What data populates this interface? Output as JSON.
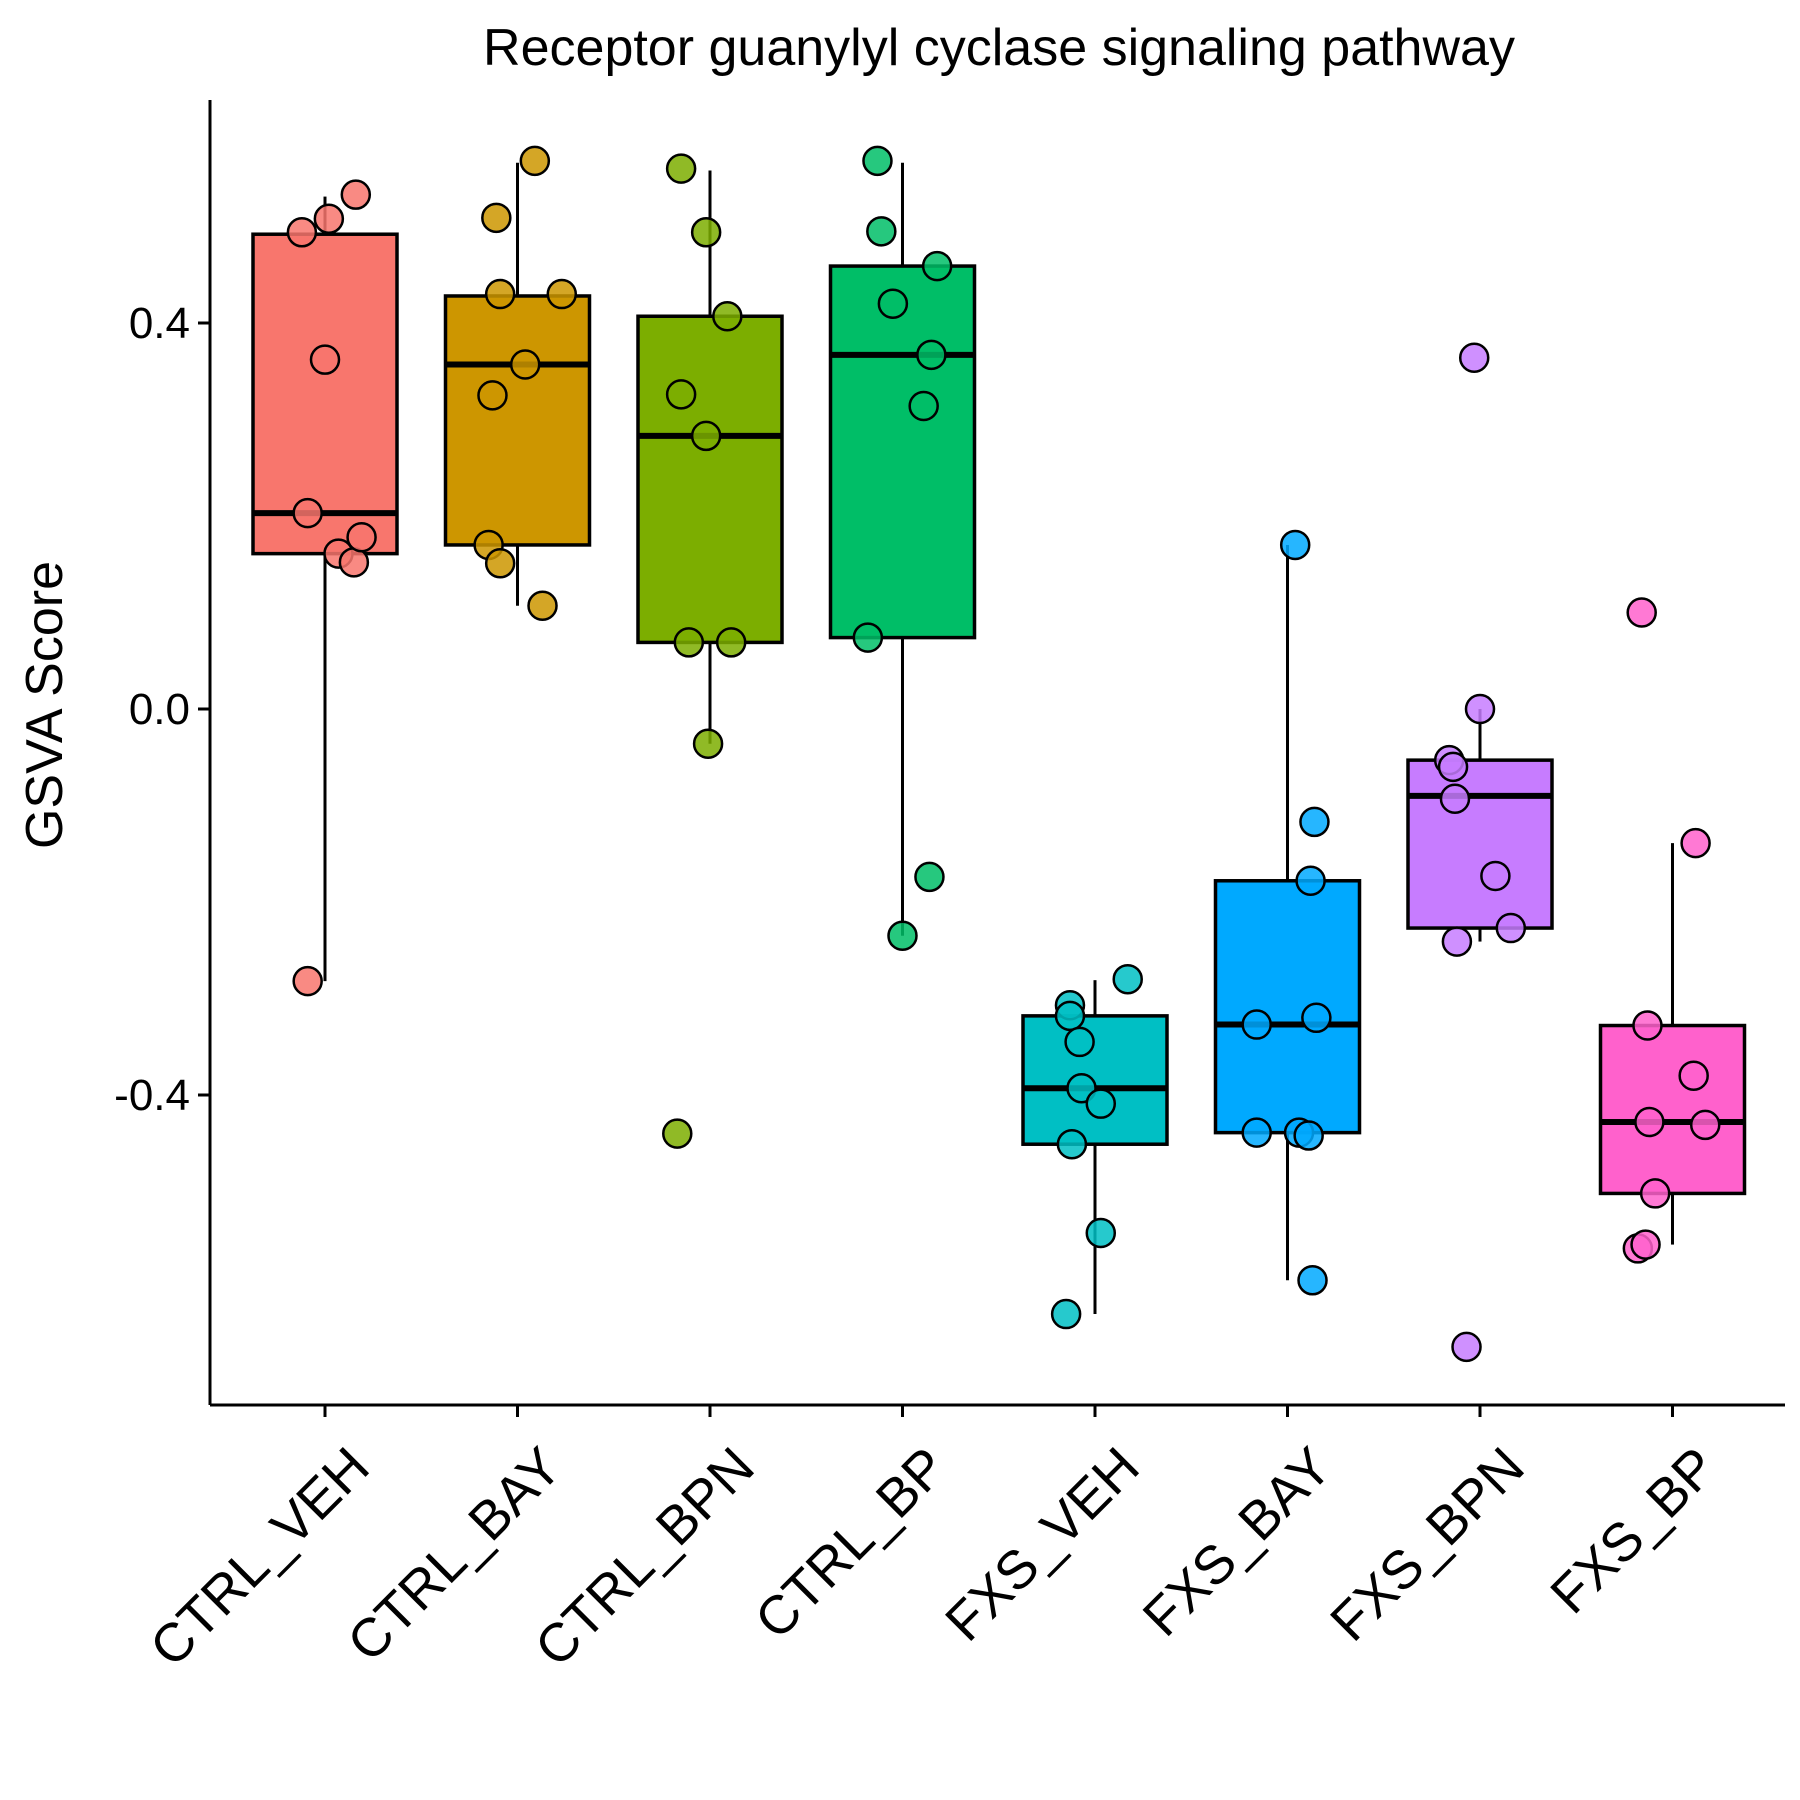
{
  "chart_data": {
    "type": "box",
    "title": "Receptor guanylyl cyclase signaling pathway",
    "xlabel": "",
    "ylabel": "GSVA Score",
    "ylim": [
      -0.72,
      0.63
    ],
    "yticks": [
      -0.4,
      0.0,
      0.4
    ],
    "ytick_labels": [
      "-0.4",
      "0.0",
      "0.4"
    ],
    "grid": false,
    "legend": "none",
    "categories": [
      "CTRL_VEH",
      "CTRL_BAY",
      "CTRL_BPN",
      "CTRL_BP",
      "FXS_VEH",
      "FXS_BAY",
      "FXS_BPN",
      "FXS_BP"
    ],
    "colors": [
      "#F8766D",
      "#CD9600",
      "#7CAE00",
      "#00BE67",
      "#00BFC4",
      "#00A9FF",
      "#C77CFF",
      "#FF61CC"
    ],
    "boxes": [
      {
        "q1": 0.161,
        "median": 0.203,
        "q3": 0.492,
        "whisker_low": -0.282,
        "whisker_high": 0.531
      },
      {
        "q1": 0.17,
        "median": 0.357,
        "q3": 0.428,
        "whisker_low": 0.107,
        "whisker_high": 0.566
      },
      {
        "q1": 0.069,
        "median": 0.283,
        "q3": 0.407,
        "whisker_low": -0.036,
        "whisker_high": 0.558
      },
      {
        "q1": 0.074,
        "median": 0.367,
        "q3": 0.459,
        "whisker_low": -0.235,
        "whisker_high": 0.566
      },
      {
        "q1": -0.451,
        "median": -0.393,
        "q3": -0.318,
        "whisker_low": -0.627,
        "whisker_high": -0.281
      },
      {
        "q1": -0.439,
        "median": -0.327,
        "q3": -0.178,
        "whisker_low": -0.592,
        "whisker_high": 0.17
      },
      {
        "q1": -0.227,
        "median": -0.09,
        "q3": -0.053,
        "whisker_low": -0.241,
        "whisker_high": 0.0
      },
      {
        "q1": -0.502,
        "median": -0.428,
        "q3": -0.328,
        "whisker_low": -0.555,
        "whisker_high": -0.139
      }
    ],
    "points": [
      [
        {
          "x": 0.38,
          "y": 0.494
        },
        {
          "x": 0.52,
          "y": 0.508
        },
        {
          "x": 0.66,
          "y": 0.533
        },
        {
          "x": 0.5,
          "y": 0.362
        },
        {
          "x": 0.41,
          "y": 0.203
        },
        {
          "x": 0.57,
          "y": 0.161
        },
        {
          "x": 0.65,
          "y": 0.152
        },
        {
          "x": 0.69,
          "y": 0.178
        },
        {
          "x": 0.41,
          "y": -0.282
        }
      ],
      [
        {
          "x": 0.39,
          "y": 0.509
        },
        {
          "x": 0.59,
          "y": 0.568
        },
        {
          "x": 0.41,
          "y": 0.43
        },
        {
          "x": 0.73,
          "y": 0.43
        },
        {
          "x": 0.54,
          "y": 0.357
        },
        {
          "x": 0.37,
          "y": 0.325
        },
        {
          "x": 0.35,
          "y": 0.17
        },
        {
          "x": 0.41,
          "y": 0.151
        },
        {
          "x": 0.63,
          "y": 0.107
        }
      ],
      [
        {
          "x": 0.35,
          "y": 0.56
        },
        {
          "x": 0.48,
          "y": 0.494
        },
        {
          "x": 0.59,
          "y": 0.407
        },
        {
          "x": 0.35,
          "y": 0.326
        },
        {
          "x": 0.48,
          "y": 0.283
        },
        {
          "x": 0.39,
          "y": 0.069
        },
        {
          "x": 0.61,
          "y": 0.069
        },
        {
          "x": 0.49,
          "y": -0.036
        },
        {
          "x": 0.33,
          "y": -0.44
        }
      ],
      [
        {
          "x": 0.37,
          "y": 0.568
        },
        {
          "x": 0.39,
          "y": 0.495
        },
        {
          "x": 0.68,
          "y": 0.459
        },
        {
          "x": 0.45,
          "y": 0.42
        },
        {
          "x": 0.65,
          "y": 0.367
        },
        {
          "x": 0.61,
          "y": 0.314
        },
        {
          "x": 0.32,
          "y": 0.074
        },
        {
          "x": 0.64,
          "y": -0.174
        },
        {
          "x": 0.5,
          "y": -0.235
        }
      ],
      [
        {
          "x": 0.67,
          "y": -0.28
        },
        {
          "x": 0.37,
          "y": -0.307
        },
        {
          "x": 0.37,
          "y": -0.318
        },
        {
          "x": 0.42,
          "y": -0.345
        },
        {
          "x": 0.43,
          "y": -0.393
        },
        {
          "x": 0.53,
          "y": -0.409
        },
        {
          "x": 0.38,
          "y": -0.451
        },
        {
          "x": 0.53,
          "y": -0.543
        },
        {
          "x": 0.35,
          "y": -0.627
        }
      ],
      [
        {
          "x": 0.54,
          "y": 0.17
        },
        {
          "x": 0.64,
          "y": -0.117
        },
        {
          "x": 0.62,
          "y": -0.178
        },
        {
          "x": 0.34,
          "y": -0.327
        },
        {
          "x": 0.65,
          "y": -0.32
        },
        {
          "x": 0.34,
          "y": -0.439
        },
        {
          "x": 0.56,
          "y": -0.439
        },
        {
          "x": 0.61,
          "y": -0.442
        },
        {
          "x": 0.63,
          "y": -0.592
        }
      ],
      [
        {
          "x": 0.47,
          "y": 0.364
        },
        {
          "x": 0.5,
          "y": 0.0
        },
        {
          "x": 0.34,
          "y": -0.053
        },
        {
          "x": 0.36,
          "y": -0.06
        },
        {
          "x": 0.37,
          "y": -0.093
        },
        {
          "x": 0.58,
          "y": -0.173
        },
        {
          "x": 0.66,
          "y": -0.227
        },
        {
          "x": 0.38,
          "y": -0.241
        },
        {
          "x": 0.43,
          "y": -0.661
        }
      ],
      [
        {
          "x": 0.34,
          "y": 0.1
        },
        {
          "x": 0.62,
          "y": -0.139
        },
        {
          "x": 0.37,
          "y": -0.328
        },
        {
          "x": 0.61,
          "y": -0.38
        },
        {
          "x": 0.38,
          "y": -0.428
        },
        {
          "x": 0.67,
          "y": -0.431
        },
        {
          "x": 0.41,
          "y": -0.502
        },
        {
          "x": 0.32,
          "y": -0.559
        },
        {
          "x": 0.36,
          "y": -0.555
        }
      ]
    ]
  }
}
